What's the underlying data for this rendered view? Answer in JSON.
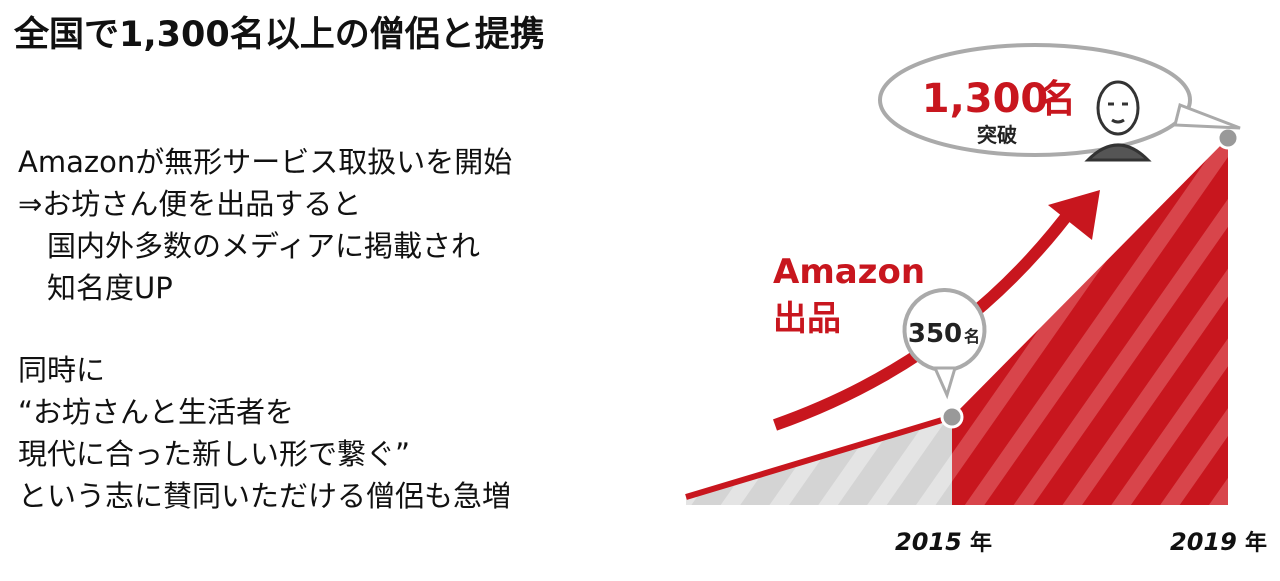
{
  "header": {
    "title": "全国で1,300名以上の僧侶と提携"
  },
  "body": {
    "paragraphs": [
      [
        "Amazonが無形サービス取扱いを開始",
        "⇒お坊さん便を出品すると",
        "　国内外多数のメディアに掲載され",
        "　知名度UP"
      ],
      [
        "同時に",
        "“お坊さんと生活者を",
        "現代に合った新しい形で繋ぐ”",
        "という志に賛同いただける僧侶も急増"
      ]
    ]
  },
  "graphic": {
    "top_callout": {
      "number": "1,300",
      "unit": "名",
      "sub": "突破"
    },
    "mid_callout": {
      "number": "350",
      "unit": "名"
    },
    "annotation": [
      "Amazon",
      "出品"
    ],
    "years": [
      {
        "year": "2015",
        "unit": "年"
      },
      {
        "year": "2019",
        "unit": "年"
      }
    ]
  }
}
